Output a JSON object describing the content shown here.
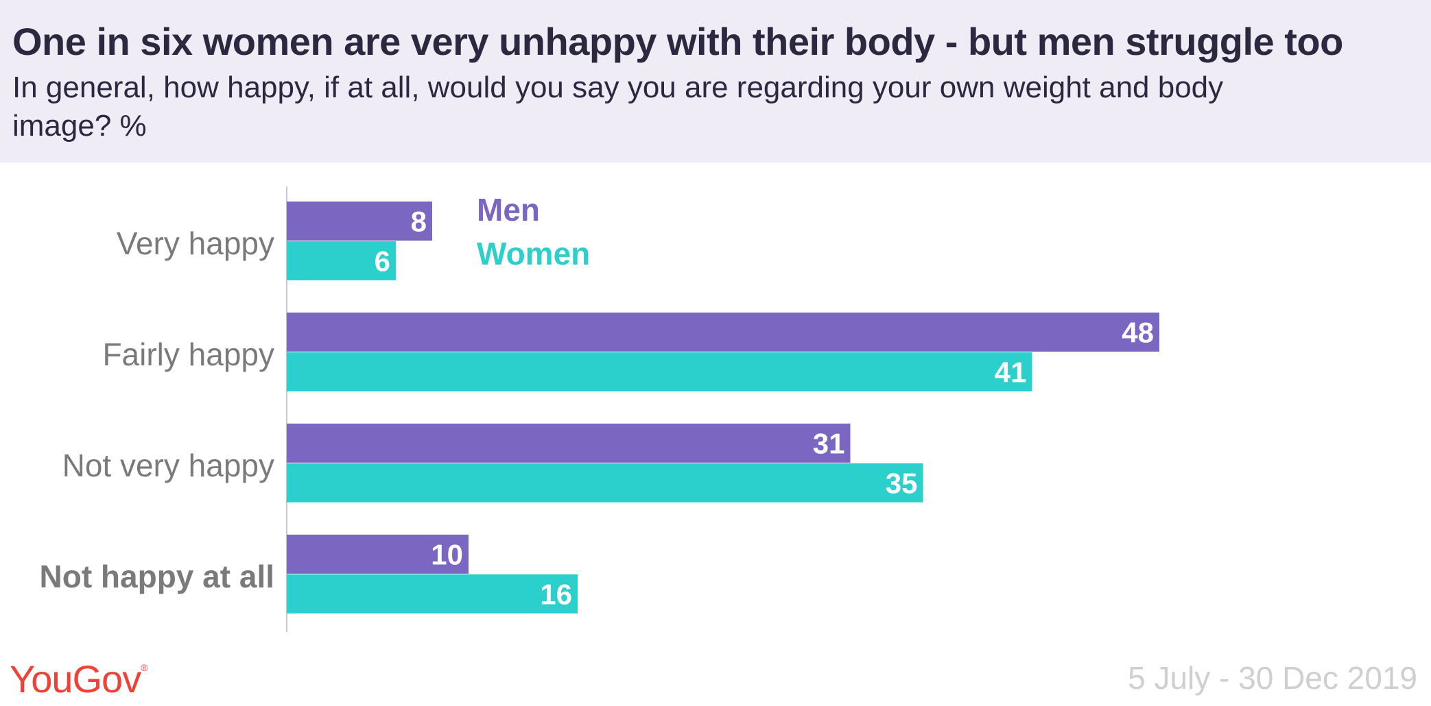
{
  "title": "One in six women are very unhappy with their body - but men struggle too",
  "subtitle": "In general, how happy, if at all, would you say you are regarding your own weight and body image? %",
  "logo_text": "YouGov",
  "logo_mark": "®",
  "date_range": "5 July - 30 Dec 2019",
  "colors": {
    "men": "#7b66c2",
    "women": "#2bcfcb",
    "label": "#7a7a7a",
    "header_bg": "#efecf6"
  },
  "chart_data": {
    "type": "bar",
    "orientation": "horizontal",
    "categories": [
      "Very happy",
      "Fairly happy",
      "Not very happy",
      "Not happy at all"
    ],
    "bold_categories": [
      "Not happy at all"
    ],
    "series": [
      {
        "name": "Men",
        "values": [
          8,
          48,
          31,
          10
        ]
      },
      {
        "name": "Women",
        "values": [
          6,
          41,
          35,
          16
        ]
      }
    ],
    "xlim": [
      0,
      50
    ],
    "grid": false,
    "legend_position": "top-inside"
  }
}
